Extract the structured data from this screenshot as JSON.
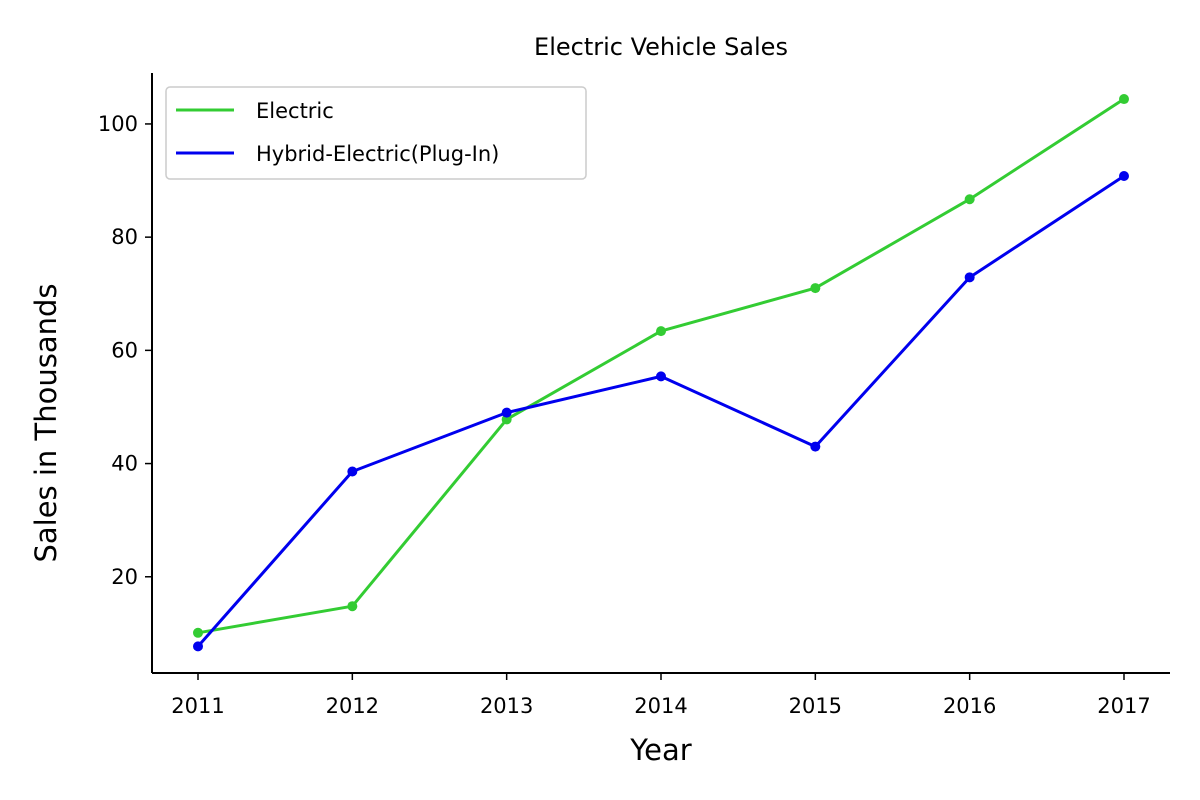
{
  "chart_data": {
    "type": "line",
    "title": "Electric Vehicle Sales",
    "xlabel": "Year",
    "ylabel": "Sales in Thousands",
    "categories": [
      "2011",
      "2012",
      "2013",
      "2014",
      "2015",
      "2016",
      "2017"
    ],
    "yticks": [
      "20",
      "40",
      "60",
      "80",
      "100"
    ],
    "ylim": [
      3,
      109
    ],
    "grid": false,
    "legend_position": "upper-left",
    "series": [
      {
        "name": "Electric",
        "color": "#33cc33",
        "values": [
          10.1,
          14.8,
          47.8,
          63.4,
          71.0,
          86.7,
          104.4
        ]
      },
      {
        "name": "Hybrid-Electric(Plug-In)",
        "color": "#0000ee",
        "values": [
          7.7,
          38.6,
          49.0,
          55.4,
          43.0,
          72.9,
          90.8
        ]
      }
    ]
  }
}
